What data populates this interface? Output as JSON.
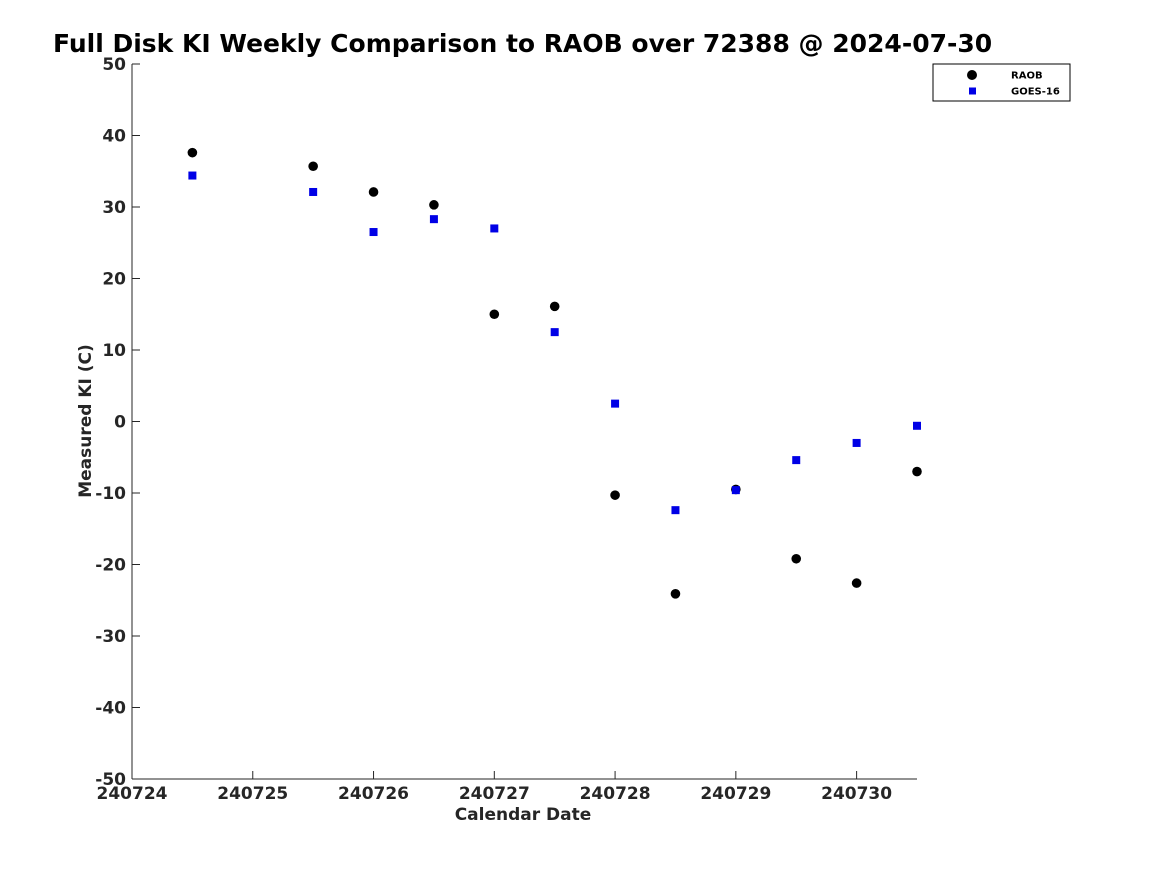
{
  "chart_data": {
    "type": "scatter",
    "title": "Full Disk KI Weekly Comparison to RAOB over 72388 @ 2024-07-30",
    "xlabel": "Calendar Date",
    "ylabel": "Measured KI (C)",
    "xlim": [
      240724,
      240730.5
    ],
    "ylim": [
      -50,
      50
    ],
    "x_ticks": [
      {
        "value": 240724,
        "label": "240724"
      },
      {
        "value": 240725,
        "label": "240725"
      },
      {
        "value": 240726,
        "label": "240726"
      },
      {
        "value": 240727,
        "label": "240727"
      },
      {
        "value": 240728,
        "label": "240728"
      },
      {
        "value": 240729,
        "label": "240729"
      },
      {
        "value": 240730,
        "label": "240730"
      }
    ],
    "y_ticks": [
      {
        "value": 50,
        "label": "50"
      },
      {
        "value": 40,
        "label": "40"
      },
      {
        "value": 30,
        "label": "30"
      },
      {
        "value": 20,
        "label": "20"
      },
      {
        "value": 10,
        "label": "10"
      },
      {
        "value": 0,
        "label": "0"
      },
      {
        "value": -10,
        "label": "-10"
      },
      {
        "value": -20,
        "label": "-20"
      },
      {
        "value": -30,
        "label": "-30"
      },
      {
        "value": -40,
        "label": "-40"
      },
      {
        "value": -50,
        "label": "-50"
      }
    ],
    "grid": false,
    "legend": "top-right",
    "series": [
      {
        "name": "RAOB",
        "marker": "circle",
        "color": "#000000",
        "points": [
          {
            "x": 240724.5,
            "y": 37.6
          },
          {
            "x": 240725.5,
            "y": 35.7
          },
          {
            "x": 240726.0,
            "y": 32.1
          },
          {
            "x": 240726.5,
            "y": 30.3
          },
          {
            "x": 240727.0,
            "y": 15.0
          },
          {
            "x": 240727.5,
            "y": 16.1
          },
          {
            "x": 240728.0,
            "y": -10.3
          },
          {
            "x": 240728.5,
            "y": -24.1
          },
          {
            "x": 240729.0,
            "y": -9.5
          },
          {
            "x": 240729.5,
            "y": -19.2
          },
          {
            "x": 240730.0,
            "y": -22.6
          },
          {
            "x": 240730.5,
            "y": -7.0
          }
        ]
      },
      {
        "name": "GOES-16",
        "marker": "square",
        "color": "#0000e6",
        "points": [
          {
            "x": 240724.5,
            "y": 34.4
          },
          {
            "x": 240725.5,
            "y": 32.1
          },
          {
            "x": 240726.0,
            "y": 26.5
          },
          {
            "x": 240726.5,
            "y": 28.3
          },
          {
            "x": 240727.0,
            "y": 27.0
          },
          {
            "x": 240727.5,
            "y": 12.5
          },
          {
            "x": 240728.0,
            "y": 2.5
          },
          {
            "x": 240728.5,
            "y": -12.4
          },
          {
            "x": 240729.0,
            "y": -9.6
          },
          {
            "x": 240729.5,
            "y": -5.4
          },
          {
            "x": 240730.0,
            "y": -3.0
          },
          {
            "x": 240730.5,
            "y": -0.6
          }
        ]
      }
    ]
  }
}
